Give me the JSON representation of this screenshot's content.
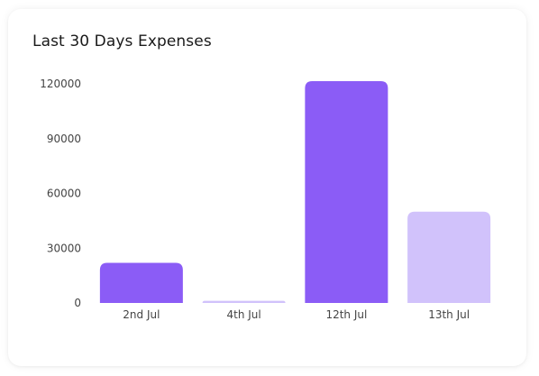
{
  "card": {
    "title": "Last 30 Days Expenses"
  },
  "chart_data": {
    "type": "bar",
    "title": "Last 30 Days Expenses",
    "categories": [
      "2nd Jul",
      "4th Jul",
      "12th Jul",
      "13th Jul"
    ],
    "values": [
      22000,
      1200,
      121500,
      50000
    ],
    "ylim": [
      0,
      120000
    ],
    "yticks": [
      0,
      30000,
      60000,
      90000,
      120000
    ],
    "xlabel": "",
    "ylabel": "",
    "grid": false,
    "legend": "none",
    "bar_colors": [
      "#8B5CF6",
      "#D1C2FB",
      "#8B5CF6",
      "#D1C2FB"
    ]
  }
}
